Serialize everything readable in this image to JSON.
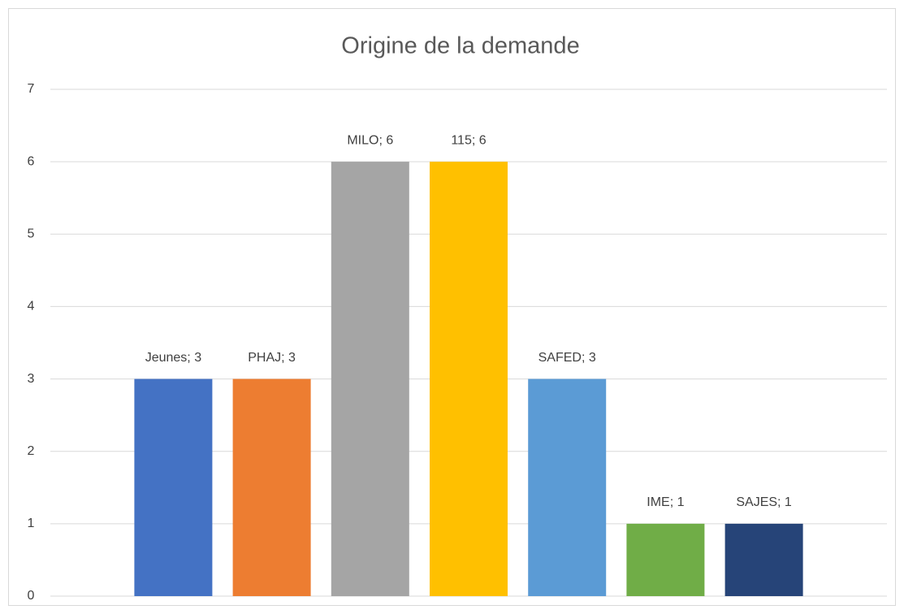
{
  "chart_data": {
    "type": "bar",
    "title": "Origine de la demande",
    "values": [
      3,
      3,
      6,
      6,
      3,
      1,
      1
    ],
    "value_labels": [
      "Jeunes; 3",
      "PHAJ; 3",
      "MILO; 6",
      "115; 6",
      "SAFED; 3",
      "IME; 1",
      "SAJES; 1"
    ],
    "colors": [
      "#4472c4",
      "#ed7d31",
      "#a5a5a5",
      "#ffc000",
      "#5b9bd5",
      "#70ad47",
      "#264478"
    ],
    "ylim": [
      0,
      7
    ],
    "yticks": [
      0,
      1,
      2,
      3,
      4,
      5,
      6,
      7
    ],
    "grid": true
  }
}
